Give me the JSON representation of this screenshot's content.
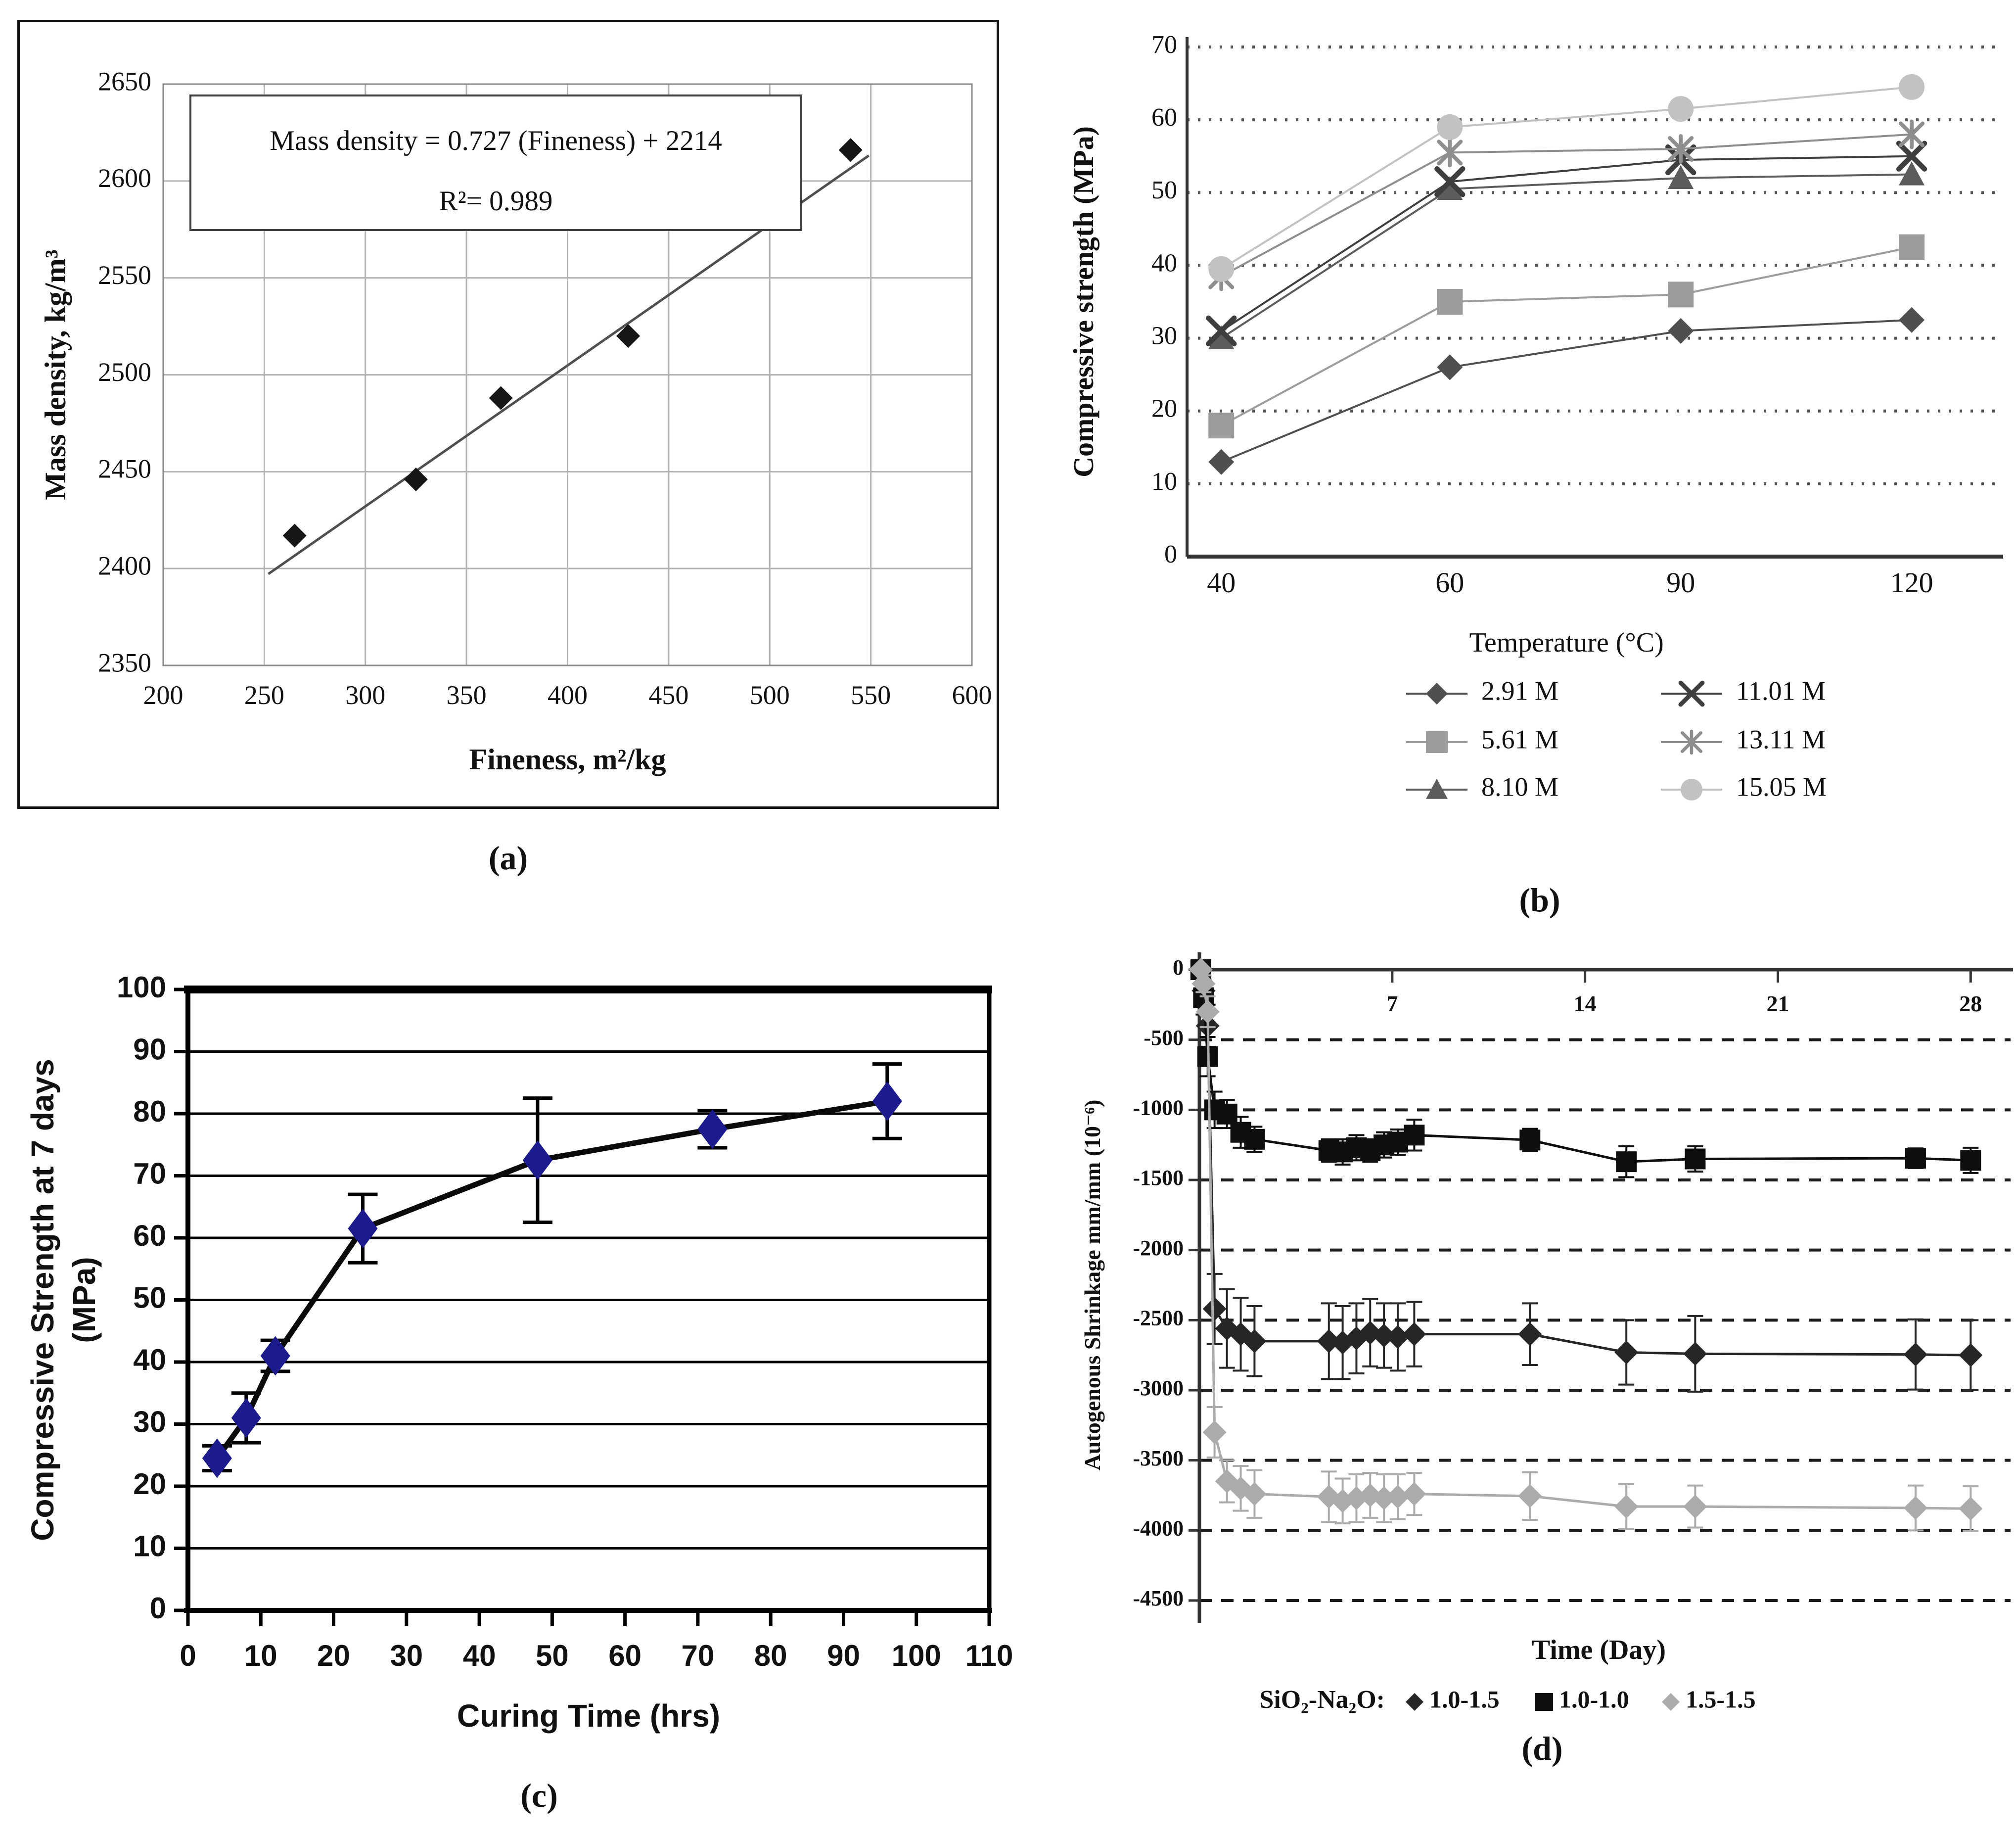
{
  "captions": {
    "a": "(a)",
    "b": "(b)",
    "c": "(c)",
    "d": "(d)"
  },
  "chart_data": [
    {
      "id": "a",
      "type": "scatter",
      "xlabel": "Fineness, m²/kg",
      "ylabel": "Mass density, kg/m³",
      "xlim": [
        200,
        600
      ],
      "ylim": [
        2350,
        2650
      ],
      "xticks": [
        200,
        250,
        300,
        350,
        400,
        450,
        500,
        550,
        600
      ],
      "yticks": [
        2350,
        2400,
        2450,
        2500,
        2550,
        2600,
        2650
      ],
      "grid": "both-solid",
      "grid_color": "#b3b3b3",
      "annotation": [
        "Mass density = 0.727 (Fineness) + 2214",
        "R²= 0.989"
      ],
      "points": [
        [
          265,
          2417
        ],
        [
          325,
          2446
        ],
        [
          367,
          2488
        ],
        [
          430,
          2520
        ],
        [
          540,
          2616
        ]
      ],
      "trendline": {
        "slope": 0.727,
        "intercept": 2214,
        "x_start": 252,
        "x_end": 549
      },
      "marker": "diamond",
      "marker_color": "#161616",
      "line_color": "#4f4f4f"
    },
    {
      "id": "b",
      "type": "line",
      "xlabel": "Temperature (°C)",
      "ylabel": "Compressive strength (MPa)",
      "categories": [
        40,
        60,
        90,
        120
      ],
      "ylim": [
        0,
        70
      ],
      "yticks": [
        0,
        10,
        20,
        30,
        40,
        50,
        60,
        70
      ],
      "grid": "y-dotted",
      "legend_position": "bottom-two-column",
      "series": [
        {
          "name": "2.91 M",
          "marker": "diamond",
          "color": "#4f4f4f",
          "values": [
            13,
            26,
            31,
            32.5
          ]
        },
        {
          "name": "5.61 M",
          "marker": "square",
          "color": "#9c9c9c",
          "values": [
            18,
            35,
            36,
            42.5
          ]
        },
        {
          "name": "8.10 M",
          "marker": "triangle",
          "color": "#5c5c5c",
          "values": [
            30,
            50.5,
            52,
            52.5
          ]
        },
        {
          "name": "11.01 M",
          "marker": "x",
          "color": "#3e3e3e",
          "values": [
            31,
            51.5,
            54.5,
            55
          ]
        },
        {
          "name": "13.11 M",
          "marker": "asterisk",
          "color": "#8e8e8e",
          "values": [
            38.5,
            55.5,
            56,
            58
          ]
        },
        {
          "name": "15.05 M",
          "marker": "circle",
          "color": "#c2c2c2",
          "values": [
            39.5,
            59,
            61.5,
            64.5
          ]
        }
      ]
    },
    {
      "id": "c",
      "type": "line",
      "xlabel": "Curing Time (hrs)",
      "ylabel": "Compressive Strength at 7 days",
      "ylabel2": "(MPa)",
      "xlim": [
        0,
        110
      ],
      "ylim": [
        0,
        100
      ],
      "xticks": [
        0,
        10,
        20,
        30,
        40,
        50,
        60,
        70,
        80,
        90,
        100,
        110
      ],
      "yticks": [
        0,
        10,
        20,
        30,
        40,
        50,
        60,
        70,
        80,
        90,
        100
      ],
      "grid": "y-solid-black",
      "series": [
        {
          "name": "compressive strength",
          "marker": "diamond",
          "color": "#1b1b8e",
          "line_color": "#0a0a0a",
          "x": [
            4,
            8,
            12,
            24,
            48,
            72,
            96
          ],
          "values": [
            24.5,
            31,
            41,
            61.5,
            72.5,
            77.5,
            82
          ],
          "errors": [
            2,
            4,
            2.5,
            5.5,
            10,
            3,
            6
          ]
        }
      ]
    },
    {
      "id": "d",
      "type": "line",
      "xlabel": "Time (Day)",
      "ylabel": "Autogenous Shrinkage mm/mm (10⁻⁶)",
      "legend_title": "SiO₂-Na₂O:",
      "xlim": [
        0,
        29
      ],
      "ylim": [
        -4500,
        0
      ],
      "xticks": [
        7,
        14,
        21,
        28
      ],
      "yticks": [
        0,
        -500,
        -1000,
        -1500,
        -2000,
        -2500,
        -3000,
        -3500,
        -4000,
        -4500
      ],
      "grid": "y-dashed",
      "series": [
        {
          "name": "1.0-1.5",
          "marker": "diamond",
          "color": "#262626",
          "x": [
            0.05,
            0.15,
            0.3,
            0.55,
            1,
            1.5,
            2,
            4.7,
            5.2,
            5.7,
            6.2,
            6.7,
            7.2,
            7.8,
            12,
            15.5,
            18,
            26,
            28
          ],
          "values": [
            0,
            -150,
            -400,
            -2420,
            -2560,
            -2600,
            -2650,
            -2650,
            -2660,
            -2630,
            -2590,
            -2610,
            -2620,
            -2600,
            -2600,
            -2730,
            -2740,
            -2745,
            -2750
          ],
          "errors": [
            0,
            80,
            150,
            250,
            280,
            260,
            250,
            270,
            260,
            250,
            240,
            230,
            240,
            230,
            220,
            230,
            270,
            250,
            250
          ]
        },
        {
          "name": "1.0-1.0",
          "marker": "square",
          "color": "#0f0f0f",
          "x": [
            0.05,
            0.15,
            0.3,
            0.55,
            1,
            1.5,
            2,
            4.7,
            5.2,
            5.7,
            6.2,
            6.7,
            7.2,
            7.8,
            12,
            15.5,
            18,
            26,
            28
          ],
          "values": [
            0,
            -200,
            -620,
            -1000,
            -1030,
            -1160,
            -1210,
            -1290,
            -1300,
            -1270,
            -1290,
            -1250,
            -1230,
            -1180,
            -1215,
            -1370,
            -1350,
            -1345,
            -1360
          ],
          "errors": [
            0,
            120,
            140,
            130,
            100,
            110,
            90,
            80,
            90,
            90,
            80,
            90,
            90,
            110,
            80,
            110,
            90,
            70,
            90
          ]
        },
        {
          "name": "1.5-1.5",
          "marker": "diamond",
          "color": "#ababab",
          "x": [
            0.05,
            0.15,
            0.3,
            0.55,
            1,
            1.5,
            2,
            4.7,
            5.2,
            5.7,
            6.2,
            6.7,
            7.2,
            7.8,
            12,
            15.5,
            18,
            26,
            28
          ],
          "values": [
            0,
            -100,
            -300,
            -3300,
            -3650,
            -3700,
            -3740,
            -3760,
            -3790,
            -3770,
            -3750,
            -3770,
            -3760,
            -3740,
            -3755,
            -3830,
            -3830,
            -3840,
            -3845
          ],
          "errors": [
            0,
            60,
            110,
            180,
            150,
            160,
            170,
            180,
            160,
            170,
            160,
            170,
            160,
            150,
            170,
            160,
            150,
            160,
            160
          ]
        }
      ]
    }
  ]
}
